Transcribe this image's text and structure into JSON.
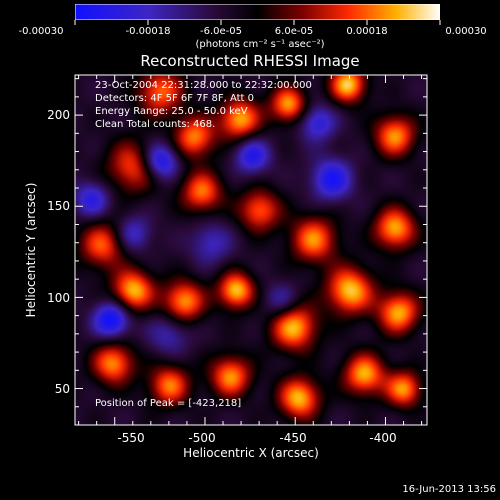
{
  "chart_data": {
    "type": "heatmap",
    "title": "Reconstructed RHESSI Image",
    "xlabel": "Heliocentric X (arcsec)",
    "ylabel": "Heliocentric Y (arcsec)",
    "xlim": [
      -572,
      -377
    ],
    "ylim": [
      30,
      222
    ],
    "xticks": [
      -550,
      -500,
      -450,
      -400
    ],
    "yticks": [
      50,
      100,
      150,
      200
    ],
    "colorbar": {
      "ticks": [
        "-0.00030",
        "-0.00018",
        "-6.0e-05",
        "6.0e-05",
        "0.00018",
        "0.00030"
      ],
      "range": [
        -0.0003,
        0.0003
      ],
      "unit_text": "(photons cm⁻² s⁻¹ asec⁻²)"
    },
    "annotations": [
      "23-Oct-2004 22:31:28.000 to 22:32:00.000",
      "Detectors: 4F 5F 6F 7F 8F, Att 0",
      "Energy Range: 25.0 - 50.0 keV",
      "Clean      Total counts: 468."
    ],
    "peak_text": "Position of Peak = [-423,218]",
    "peak": [
      -423,
      218
    ],
    "grid": false,
    "colormap": "blue-purple-red-yellow-white",
    "blobs": [
      {
        "x": -525,
        "y": 213,
        "v": 0.00023,
        "r": 9
      },
      {
        "x": -506,
        "y": 188,
        "v": 0.00025,
        "r": 8
      },
      {
        "x": -481,
        "y": 198,
        "v": 0.00028,
        "r": 8
      },
      {
        "x": -454,
        "y": 206,
        "v": 0.00027,
        "r": 7
      },
      {
        "x": -421,
        "y": 217,
        "v": 0.0003,
        "r": 7
      },
      {
        "x": -395,
        "y": 189,
        "v": 0.00026,
        "r": 8
      },
      {
        "x": -540,
        "y": 172,
        "v": 0.00021,
        "r": 10
      },
      {
        "x": -502,
        "y": 158,
        "v": 0.00024,
        "r": 8
      },
      {
        "x": -470,
        "y": 148,
        "v": 0.00023,
        "r": 8
      },
      {
        "x": -440,
        "y": 132,
        "v": 0.00025,
        "r": 9
      },
      {
        "x": -395,
        "y": 138,
        "v": 0.00028,
        "r": 8
      },
      {
        "x": -557,
        "y": 129,
        "v": 0.00022,
        "r": 9
      },
      {
        "x": -540,
        "y": 104,
        "v": 0.00029,
        "r": 8
      },
      {
        "x": -512,
        "y": 98,
        "v": 0.00027,
        "r": 8
      },
      {
        "x": -483,
        "y": 104,
        "v": 0.0003,
        "r": 7
      },
      {
        "x": -451,
        "y": 84,
        "v": 0.00029,
        "r": 9
      },
      {
        "x": -420,
        "y": 104,
        "v": 0.0003,
        "r": 9
      },
      {
        "x": -393,
        "y": 92,
        "v": 0.00028,
        "r": 8
      },
      {
        "x": -551,
        "y": 64,
        "v": 0.00026,
        "r": 8
      },
      {
        "x": -520,
        "y": 52,
        "v": 0.00024,
        "r": 8
      },
      {
        "x": -486,
        "y": 57,
        "v": 0.00026,
        "r": 8
      },
      {
        "x": -448,
        "y": 45,
        "v": 0.00029,
        "r": 8
      },
      {
        "x": -412,
        "y": 58,
        "v": 0.00028,
        "r": 8
      },
      {
        "x": -390,
        "y": 50,
        "v": 0.00026,
        "r": 7
      },
      {
        "x": -525,
        "y": 175,
        "v": -0.00025,
        "r": 7
      },
      {
        "x": -474,
        "y": 178,
        "v": -0.0002,
        "r": 7
      },
      {
        "x": -430,
        "y": 165,
        "v": -0.00022,
        "r": 8
      },
      {
        "x": -438,
        "y": 196,
        "v": -0.00018,
        "r": 7
      },
      {
        "x": -563,
        "y": 154,
        "v": -0.00018,
        "r": 7
      },
      {
        "x": -540,
        "y": 135,
        "v": -0.00015,
        "r": 7
      },
      {
        "x": -552,
        "y": 88,
        "v": -0.00026,
        "r": 7
      },
      {
        "x": -497,
        "y": 130,
        "v": -0.00013,
        "r": 8
      },
      {
        "x": -458,
        "y": 98,
        "v": -0.00012,
        "r": 7
      },
      {
        "x": -520,
        "y": 80,
        "v": -0.00012,
        "r": 8
      }
    ]
  },
  "footer": {
    "timestamp": "16-Jun-2013 13:56"
  }
}
